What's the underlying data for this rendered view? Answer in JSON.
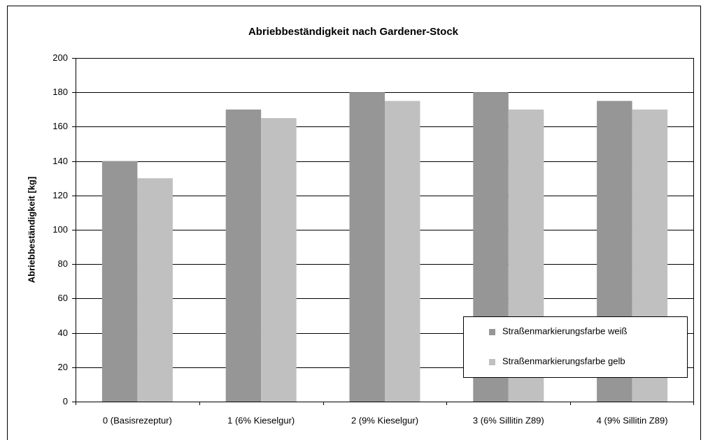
{
  "chart_data": {
    "type": "bar",
    "title": "Abriebbeständigkeit nach Gardener-Stock",
    "y_label": "Abriebbeständigkeit [kg]",
    "categories": [
      "0 (Basisrezeptur)",
      "1 (6% Kieselgur)",
      "2 (9% Kieselgur)",
      "3 (6% Sillitin Z89)",
      "4 (9% Sillitin Z89)"
    ],
    "series": [
      {
        "name": "Straßenmarkierungsfarbe weiß",
        "color": "#969696",
        "values": [
          140,
          170,
          180,
          180,
          175
        ]
      },
      {
        "name": "Straßenmarkierungsfarbe gelb",
        "color": "#c0c0c0",
        "values": [
          130,
          165,
          175,
          170,
          170
        ]
      }
    ],
    "ylim": [
      0,
      200
    ],
    "yticks": [
      0,
      20,
      40,
      60,
      80,
      100,
      120,
      140,
      160,
      180,
      200
    ],
    "grid": true,
    "legend": "lower right"
  }
}
